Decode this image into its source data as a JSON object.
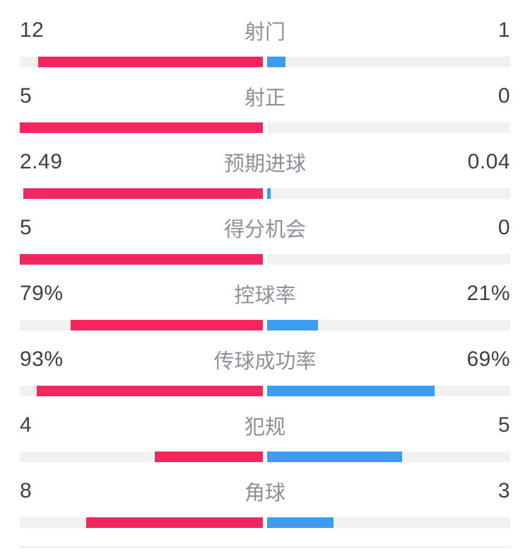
{
  "colors": {
    "background": "#ffffff",
    "left_bar": "#f3265f",
    "right_bar": "#3e9cf0",
    "bar_track": "#f1f1f2",
    "value_text": "#3d4045",
    "label_text": "#8b909a",
    "divider": "#ebecee"
  },
  "chart_data": {
    "type": "bar",
    "variant": "head-to-head split horizontal bars, center-anchored, label centered between values",
    "title": "",
    "legend_position": "none",
    "grid": false,
    "categories": [
      "射门",
      "射正",
      "预期进球",
      "得分机会",
      "控球率",
      "传球成功率",
      "犯规",
      "角球"
    ],
    "series": [
      {
        "name": "left-team",
        "color": "#f3265f",
        "values": [
          12,
          5,
          2.49,
          5,
          79,
          93,
          4,
          8
        ],
        "display": [
          "12",
          "5",
          "2.49",
          "5",
          "79%",
          "93%",
          "4",
          "8"
        ]
      },
      {
        "name": "right-team",
        "color": "#3e9cf0",
        "values": [
          1,
          0,
          0.04,
          0,
          21,
          69,
          5,
          3
        ],
        "display": [
          "1",
          "0",
          "0.04",
          "0",
          "21%",
          "69%",
          "5",
          "3"
        ]
      }
    ]
  }
}
